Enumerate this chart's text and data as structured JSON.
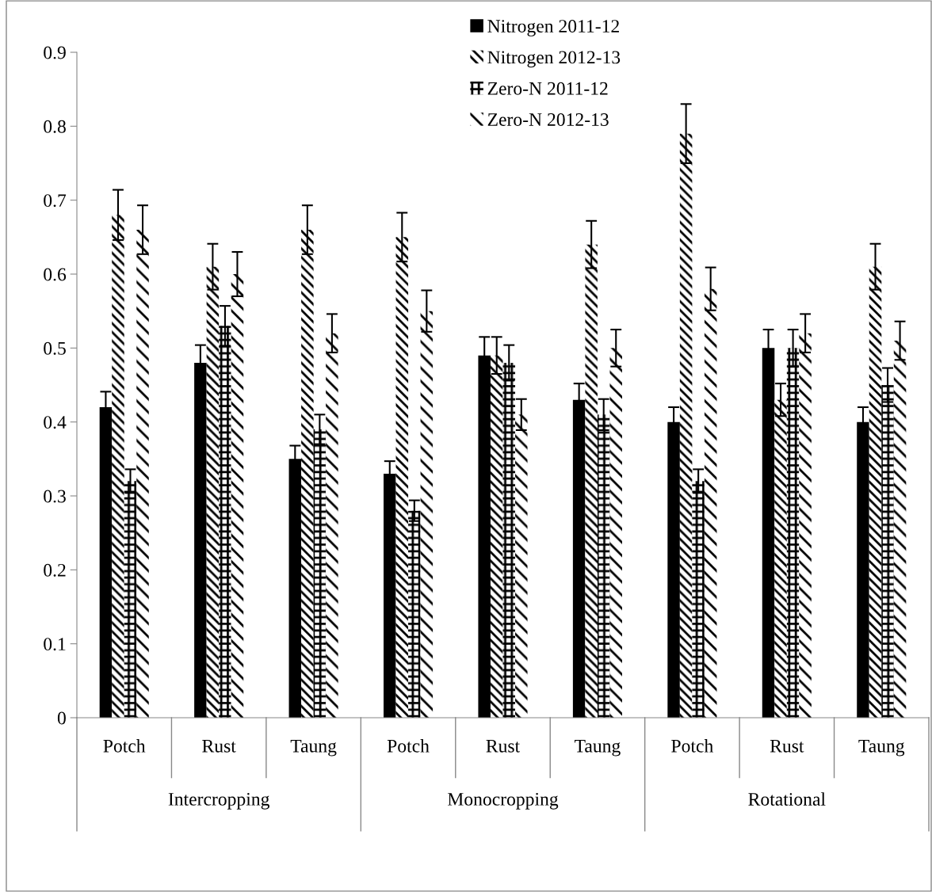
{
  "chart_data": {
    "type": "bar",
    "categories": [
      "Potch",
      "Rust",
      "Taung",
      "Potch",
      "Rust",
      "Taung",
      "Potch",
      "Rust",
      "Taung"
    ],
    "annotations": [
      "Intercropping",
      "Monocropping",
      "Rotational"
    ],
    "series": [
      {
        "name": "Nitrogen 2011-12",
        "color": "#000000",
        "values": [
          0.42,
          0.48,
          0.35,
          0.33,
          0.49,
          0.43,
          0.4,
          0.5,
          0.4
        ],
        "errors": [
          0.021,
          0.024,
          0.018,
          0.017,
          0.025,
          0.022,
          0.02,
          0.025,
          0.02
        ]
      },
      {
        "name": "Nitrogen 2012-13",
        "color": "#000000",
        "values": [
          0.68,
          0.61,
          0.66,
          0.65,
          0.49,
          0.64,
          0.79,
          0.43,
          0.61
        ],
        "errors": [
          0.034,
          0.031,
          0.033,
          0.033,
          0.025,
          0.032,
          0.04,
          0.022,
          0.031
        ]
      },
      {
        "name": "Zero-N 2011-12",
        "color": "#000000",
        "values": [
          0.32,
          0.53,
          0.39,
          0.28,
          0.48,
          0.41,
          0.32,
          0.5,
          0.45
        ],
        "errors": [
          0.016,
          0.027,
          0.02,
          0.014,
          0.024,
          0.021,
          0.016,
          0.025,
          0.023
        ]
      },
      {
        "name": "Zero-N 2012-13",
        "color": "#000000",
        "values": [
          0.66,
          0.6,
          0.52,
          0.55,
          0.41,
          0.5,
          0.58,
          0.52,
          0.51
        ],
        "errors": [
          0.033,
          0.03,
          0.026,
          0.028,
          0.021,
          0.025,
          0.029,
          0.026,
          0.026
        ]
      }
    ],
    "ylim": [
      0,
      0.9
    ],
    "yticks": [
      0,
      0.1,
      0.2,
      0.3,
      0.4,
      0.5,
      0.6,
      0.7,
      0.8,
      0.9
    ],
    "grid": false,
    "legend": "top"
  }
}
